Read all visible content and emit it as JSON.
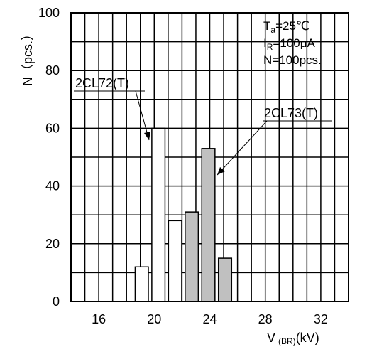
{
  "chart_data": {
    "type": "bar",
    "title": "",
    "xlabel": "V",
    "xlabel_sub": "(BR)",
    "xlabel_unit": "(kV)",
    "ylabel": "N（pcs.）",
    "xlim": [
      14,
      34
    ],
    "ylim": [
      0,
      100
    ],
    "x_ticks": [
      16,
      20,
      24,
      28,
      32
    ],
    "y_ticks": [
      0,
      20,
      40,
      60,
      80,
      100
    ],
    "grid": true,
    "series": [
      {
        "name": "2CL72(T)",
        "color": "#ffffff",
        "bars": [
          {
            "x": 19.1,
            "value": 12
          },
          {
            "x": 20.3,
            "value": 60
          },
          {
            "x": 21.5,
            "value": 28
          }
        ]
      },
      {
        "name": "2CL73(T)",
        "color": "#c0c0c0",
        "bars": [
          {
            "x": 22.7,
            "value": 31
          },
          {
            "x": 23.9,
            "value": 53
          },
          {
            "x": 25.1,
            "value": 15
          }
        ]
      }
    ],
    "conditions": {
      "ta_main": "T",
      "ta_sub": "a",
      "ta_value": "=25℃",
      "ir_main": "I",
      "ir_sub": "R",
      "ir_value": "=100μA",
      "n_text": "N=100pcs."
    }
  }
}
